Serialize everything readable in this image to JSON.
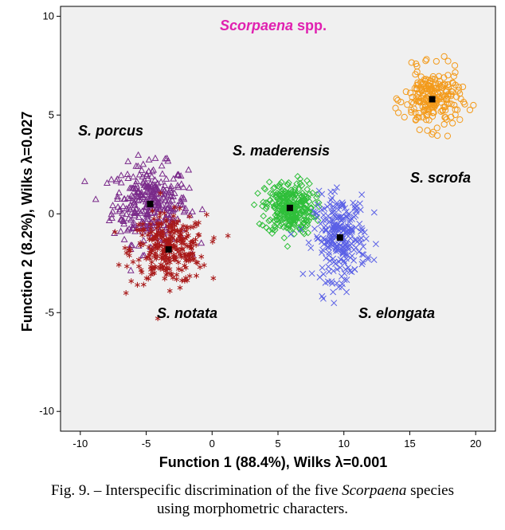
{
  "colors": {
    "plot_background": "#f0f0f0",
    "title": "#e020b0",
    "S. porcus": "#7a2a8a",
    "S. notata": "#a81818",
    "S. maderensis": "#2fbf3a",
    "S. elongata": "#5a60e6",
    "S. scrofa": "#f39a1a",
    "centroid": "#000000"
  },
  "chart_data": {
    "type": "scatter",
    "title_italic": "Scorpaena",
    "title_rest": " spp.",
    "xlabel": "Function 1 (88.4%), Wilks λ=0.001",
    "ylabel": "Function 2 (8.2%), Wilks λ=0.027",
    "xlim": [
      -11.5,
      21.5
    ],
    "ylim": [
      -11,
      10.5
    ],
    "xticks": [
      -10,
      -5,
      0,
      5,
      10,
      15,
      20
    ],
    "yticks": [
      10,
      5,
      0,
      -5,
      -10
    ],
    "grid": false,
    "series": [
      {
        "name": "S. porcus",
        "marker": "triangle",
        "centroid": [
          -4.7,
          0.5
        ],
        "spread": [
          2.3,
          1.6
        ],
        "n": 320
      },
      {
        "name": "S. notata",
        "marker": "asterisk",
        "centroid": [
          -3.3,
          -1.8
        ],
        "spread": [
          2.3,
          1.4
        ],
        "n": 300
      },
      {
        "name": "S. maderensis",
        "marker": "diamond",
        "centroid": [
          5.9,
          0.3
        ],
        "spread": [
          1.5,
          1.1
        ],
        "n": 300
      },
      {
        "name": "S. elongata",
        "marker": "cross",
        "centroid": [
          9.7,
          -1.2
        ],
        "spread": [
          1.6,
          1.7
        ],
        "n": 260
      },
      {
        "name": "S. scrofa",
        "marker": "circle",
        "centroid": [
          16.7,
          5.8
        ],
        "spread": [
          1.7,
          1.2
        ],
        "n": 220
      }
    ],
    "labels": [
      "S. porcus",
      "S. notata",
      "S. maderensis",
      "S. elongata",
      "S. scrofa"
    ]
  },
  "caption": {
    "prefix": "Fig. 9. – Interspecific discrimination of the five ",
    "italic": "Scorpaena",
    "suffix": " species",
    "line2": "using morphometric characters."
  }
}
